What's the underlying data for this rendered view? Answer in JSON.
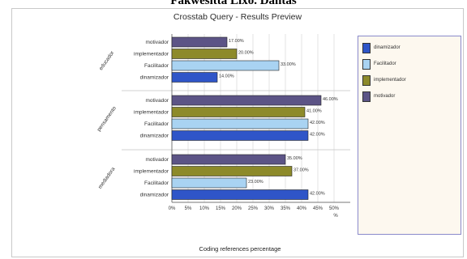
{
  "header": {
    "caption": "Fakwesitta Lixo. Dantas"
  },
  "window": {
    "title": "Crosstab Query - Results Preview"
  },
  "chart_data": {
    "type": "bar",
    "orientation": "horizontal",
    "xlabel": "Coding references percentage",
    "xunit": "%",
    "xlim": [
      0,
      50
    ],
    "xticks": [
      "0%",
      "5%",
      "10%",
      "15%",
      "20%",
      "25%",
      "30%",
      "35%",
      "40%",
      "45%",
      "50%"
    ],
    "grid": true,
    "legend_position": "right",
    "series": [
      {
        "name": "dinamizador",
        "color": "#2f55c8"
      },
      {
        "name": "Facilitador",
        "color": "#a9d3f2"
      },
      {
        "name": "implementador",
        "color": "#8d8a2a"
      },
      {
        "name": "motivador",
        "color": "#5c5486"
      }
    ],
    "groups": [
      {
        "name": "educador",
        "bars": [
          {
            "category": "motivador",
            "series": "motivador",
            "value": 17.0,
            "label": "17.00%"
          },
          {
            "category": "implementador",
            "series": "implementador",
            "value": 20.0,
            "label": "20.00%"
          },
          {
            "category": "Facilitador",
            "series": "Facilitador",
            "value": 33.0,
            "label": "33.00%"
          },
          {
            "category": "dinamizador",
            "series": "dinamizador",
            "value": 14.0,
            "label": "14.00%"
          }
        ]
      },
      {
        "name": "pensamento",
        "bars": [
          {
            "category": "motivador",
            "series": "motivador",
            "value": 46.0,
            "label": "46.00%"
          },
          {
            "category": "implementador",
            "series": "implementador",
            "value": 41.0,
            "label": "41.00%"
          },
          {
            "category": "Facilitador",
            "series": "Facilitador",
            "value": 42.0,
            "label": "42.00%"
          },
          {
            "category": "dinamizador",
            "series": "dinamizador",
            "value": 42.0,
            "label": "42.00%"
          }
        ]
      },
      {
        "name": "mediadora",
        "bars": [
          {
            "category": "motivador",
            "series": "motivador",
            "value": 35.0,
            "label": "35.00%"
          },
          {
            "category": "implementador",
            "series": "implementador",
            "value": 37.0,
            "label": "37.00%"
          },
          {
            "category": "Facilitador",
            "series": "Facilitador",
            "value": 23.0,
            "label": "23.00%"
          },
          {
            "category": "dinamizador",
            "series": "dinamizador",
            "value": 42.0,
            "label": "42.00%"
          }
        ]
      }
    ]
  }
}
